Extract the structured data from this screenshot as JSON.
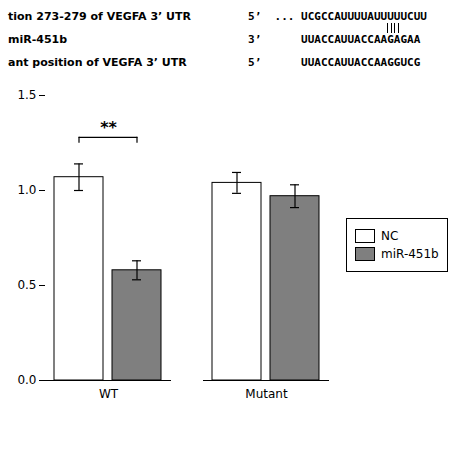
{
  "chart_data": {
    "type": "bar",
    "header": [
      {
        "label": "tion 273-279 of VEGFA 3’ UTR",
        "sequence": "5’  ... UCGCCAUUUUAUUUUUCUU"
      },
      {
        "label": "miR-451b",
        "sequence": "3’      UUACCAUUACCAAGAGAA"
      },
      {
        "label": "ant position of VEGFA 3’ UTR",
        "sequence": "5’      UUACCAUUACCAAGGUCG"
      }
    ],
    "categories": [
      "WT",
      "Mutant"
    ],
    "series": [
      {
        "name": "NC",
        "color": "white",
        "values": [
          1.07,
          1.04
        ],
        "errors": [
          0.07,
          0.055
        ]
      },
      {
        "name": "miR-451b",
        "color": "#7f7f7f",
        "values": [
          0.58,
          0.97
        ],
        "errors": [
          0.05,
          0.06
        ]
      }
    ],
    "ylim": [
      0.0,
      1.5
    ],
    "yticks": [
      {
        "value": 0.0,
        "label": "0.0"
      },
      {
        "value": 0.5,
        "label": "0.5"
      },
      {
        "value": 1.0,
        "label": "1.0"
      },
      {
        "value": 1.5,
        "label": "1.5"
      }
    ],
    "annotations": [
      {
        "text": "**",
        "category": "WT",
        "y": 1.28
      }
    ],
    "legend": "right"
  }
}
